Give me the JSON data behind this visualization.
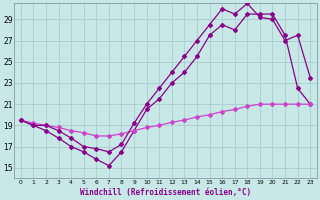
{
  "xlabel": "Windchill (Refroidissement éolien,°C)",
  "background_color": "#c8e8e8",
  "grid_color": "#aacccc",
  "line_color": "#880088",
  "line_color2": "#cc44cc",
  "xlim": [
    -0.5,
    23.5
  ],
  "ylim": [
    14.0,
    30.5
  ],
  "yticks": [
    15,
    17,
    19,
    21,
    23,
    25,
    27,
    29
  ],
  "xticks": [
    0,
    1,
    2,
    3,
    4,
    5,
    6,
    7,
    8,
    9,
    10,
    11,
    12,
    13,
    14,
    15,
    16,
    17,
    18,
    19,
    20,
    21,
    22,
    23
  ],
  "series1_x": [
    0,
    1,
    2,
    3,
    4,
    5,
    6,
    7,
    8,
    9,
    10,
    11,
    12,
    13,
    14,
    15,
    16,
    17,
    18,
    19,
    20,
    21,
    22,
    23
  ],
  "series1_y": [
    19.5,
    19.0,
    18.5,
    17.8,
    17.0,
    16.5,
    15.8,
    15.2,
    16.5,
    18.5,
    20.5,
    21.5,
    23.0,
    24.0,
    25.5,
    27.5,
    28.5,
    28.0,
    29.5,
    29.5,
    29.5,
    27.5,
    22.5,
    21.0
  ],
  "series2_x": [
    0,
    1,
    2,
    3,
    4,
    5,
    6,
    7,
    8,
    9,
    10,
    11,
    12,
    13,
    14,
    15,
    16,
    17,
    18,
    19,
    20,
    21,
    22,
    23
  ],
  "series2_y": [
    19.5,
    19.2,
    19.0,
    18.8,
    18.5,
    18.3,
    18.0,
    18.0,
    18.2,
    18.5,
    18.8,
    19.0,
    19.3,
    19.5,
    19.8,
    20.0,
    20.3,
    20.5,
    20.8,
    21.0,
    21.0,
    21.0,
    21.0,
    21.0
  ],
  "series3_x": [
    0,
    1,
    2,
    3,
    4,
    5,
    6,
    7,
    8,
    9,
    10,
    11,
    12,
    13,
    14,
    15,
    16,
    17,
    18,
    19,
    20,
    21,
    22,
    23
  ],
  "series3_y": [
    19.5,
    19.0,
    19.0,
    18.5,
    17.8,
    17.0,
    16.8,
    16.5,
    17.2,
    19.2,
    21.0,
    22.5,
    24.0,
    25.5,
    27.0,
    28.5,
    30.0,
    29.5,
    30.5,
    29.2,
    29.0,
    27.0,
    27.5,
    23.5
  ]
}
